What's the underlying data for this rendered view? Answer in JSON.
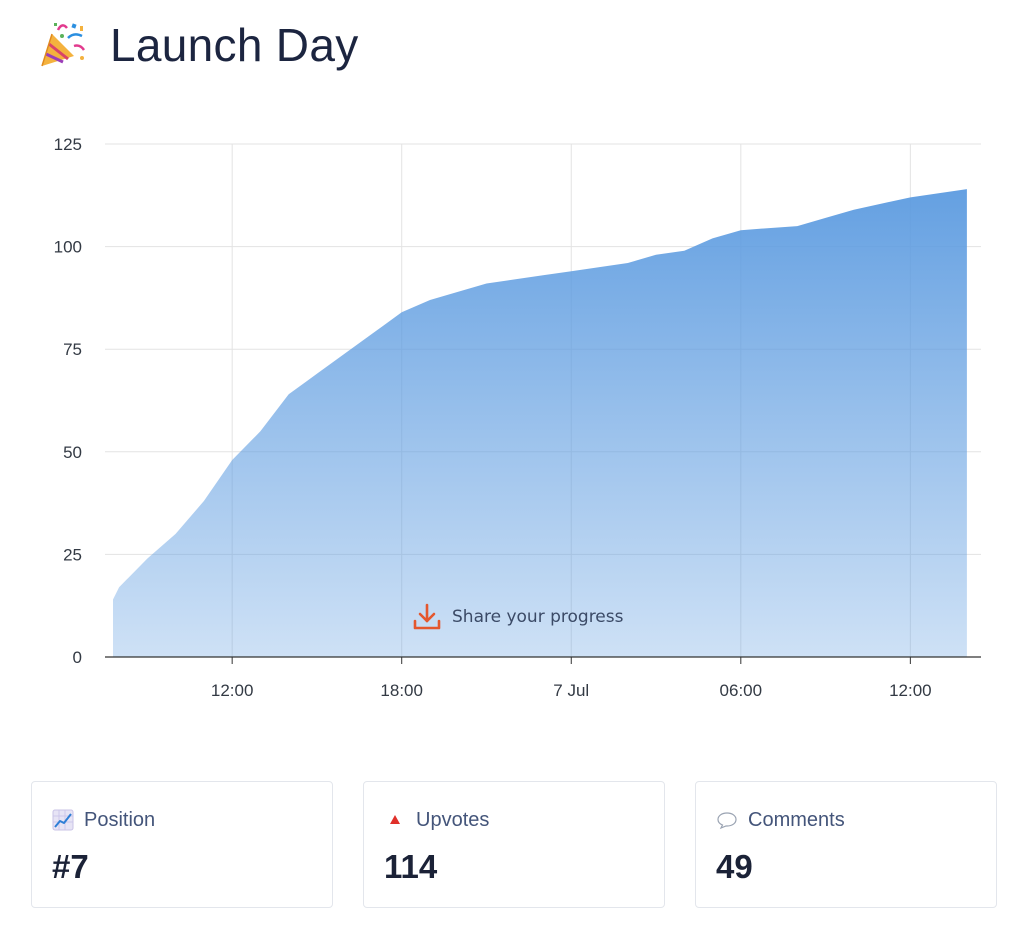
{
  "header": {
    "icon": "party-popper-icon",
    "title": "Launch Day"
  },
  "share": {
    "icon": "download-icon",
    "label": "Share your progress",
    "icon_color": "#e4572e"
  },
  "chart_data": {
    "type": "area",
    "title": "",
    "xlabel": "",
    "ylabel": "",
    "x_unit": "hour of launch period",
    "x_ticks": [
      {
        "label": "12:00",
        "x": 12
      },
      {
        "label": "18:00",
        "x": 18
      },
      {
        "label": "7 Jul",
        "x": 24
      },
      {
        "label": "06:00",
        "x": 30
      },
      {
        "label": "12:00",
        "x": 36
      }
    ],
    "xlim": [
      7.5,
      38.5
    ],
    "ylim": [
      0,
      125
    ],
    "y_ticks": [
      0,
      25,
      50,
      75,
      100,
      125
    ],
    "grid": true,
    "fill_color": "#5c9be0",
    "series": [
      {
        "x": [
          7.0,
          8.0,
          9.0,
          10.0,
          11.0,
          12.0,
          13.0,
          14.0,
          15.0,
          16.0,
          17.0,
          18.0,
          19.0,
          20.0,
          21.0,
          22.0,
          23.0,
          24.0,
          25.0,
          26.0,
          27.0,
          28.0,
          29.0,
          30.0,
          31.0,
          32.0,
          33.0,
          34.0,
          35.0,
          36.0,
          37.0,
          38.0
        ],
        "values": [
          14,
          17,
          24,
          30,
          38,
          48,
          55,
          64,
          69,
          74,
          79,
          84,
          87,
          89,
          91,
          92,
          93,
          94,
          95,
          96,
          98,
          99,
          102,
          104,
          104.5,
          105,
          107,
          109,
          110.5,
          112,
          113,
          114
        ]
      }
    ]
  },
  "stats": [
    {
      "name": "position",
      "icon": "chart-increasing-icon",
      "label": "Position",
      "value": "#7"
    },
    {
      "name": "upvotes",
      "icon": "upvote-triangle-icon",
      "label": "Upvotes",
      "value": "114"
    },
    {
      "name": "comments",
      "icon": "speech-bubble-icon",
      "label": "Comments",
      "value": "49"
    }
  ]
}
